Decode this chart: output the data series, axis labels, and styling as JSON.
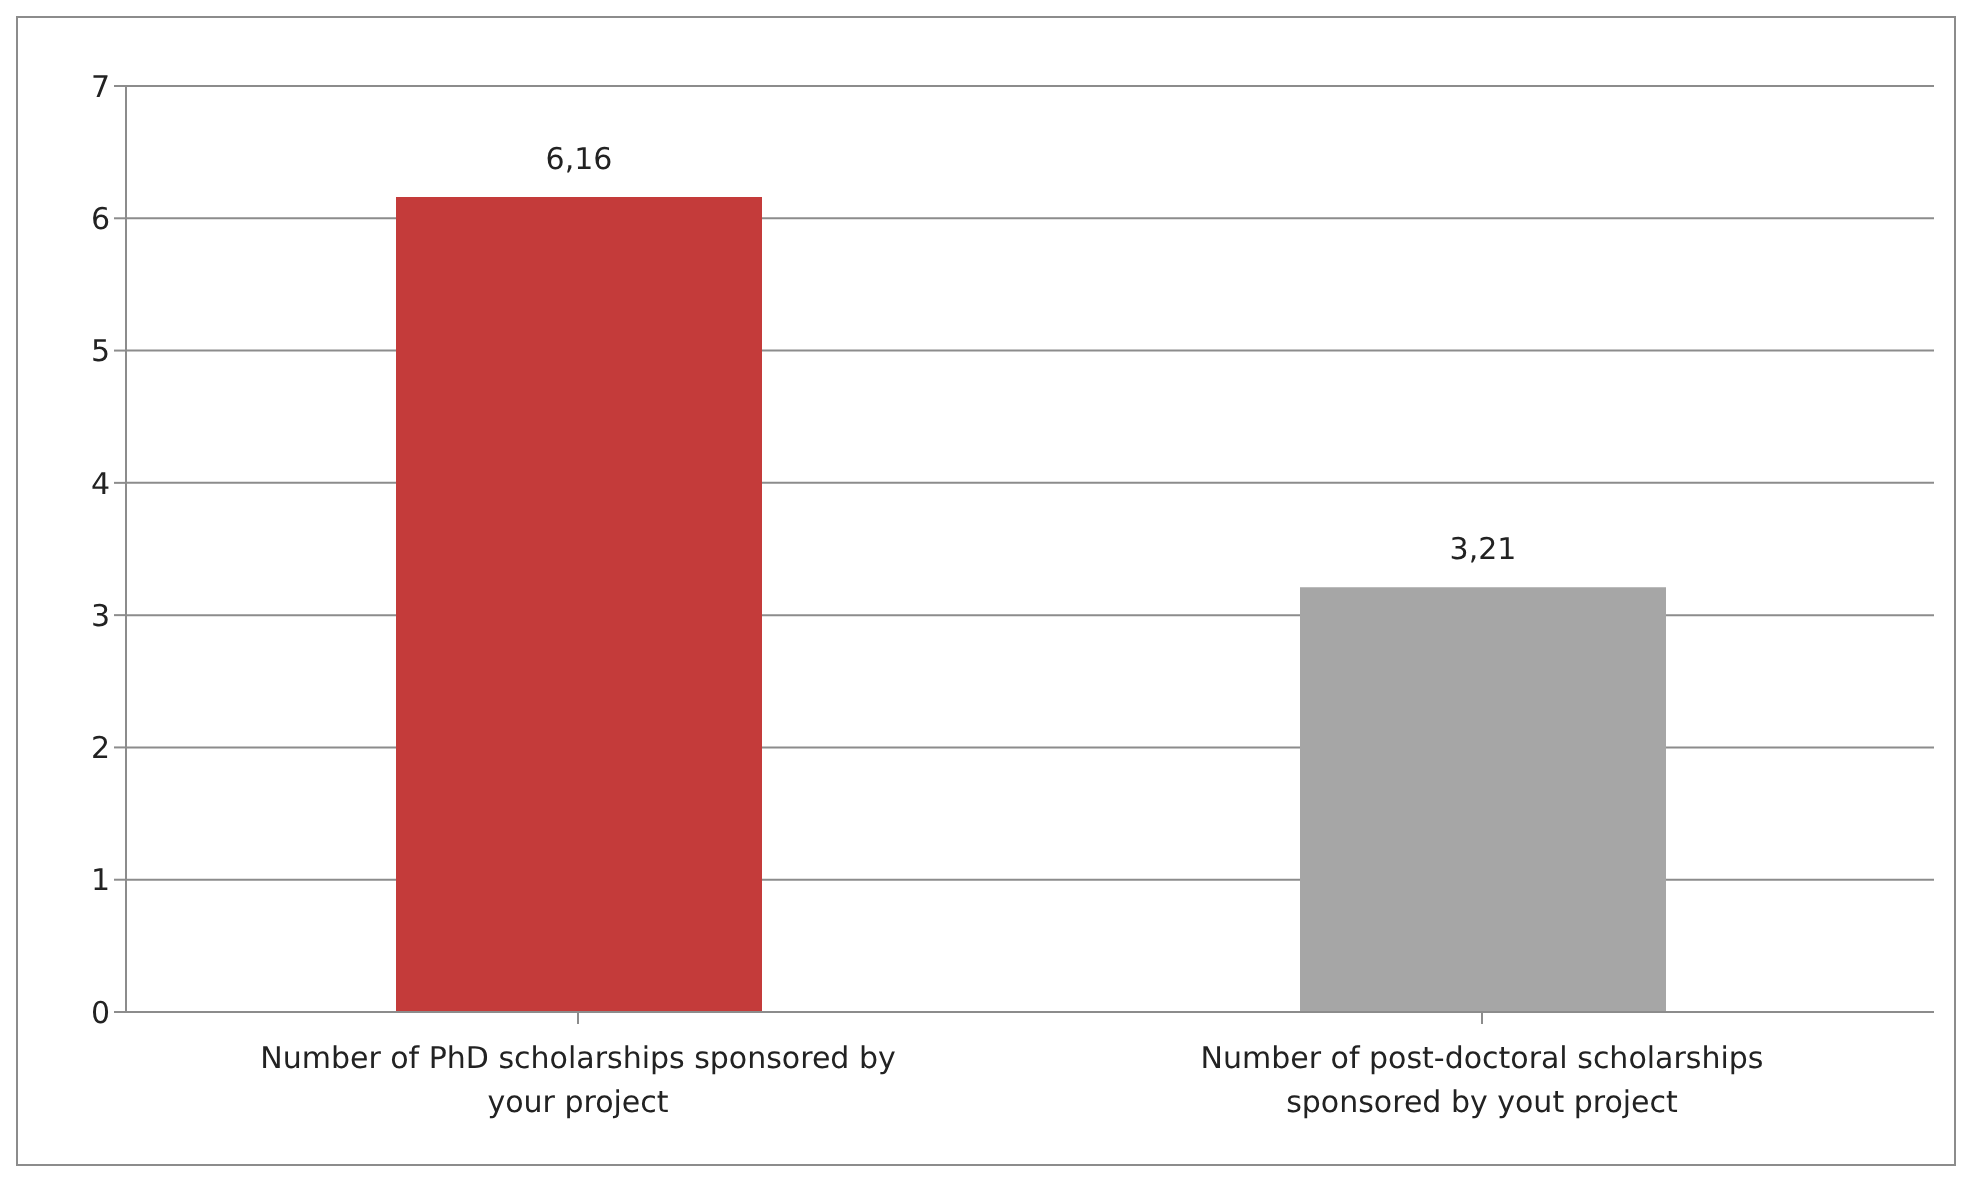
{
  "chart_data": {
    "type": "bar",
    "categories": [
      "Number of PhD scholarships sponsored by your project",
      "Number of post-doctoral scholarships sponsored by yout project"
    ],
    "values": [
      6.16,
      3.21
    ],
    "colors": [
      "#c43b3a",
      "#a6a6a6"
    ],
    "value_labels": [
      "6,16",
      "3,21"
    ],
    "ylim": [
      0,
      7
    ],
    "yticks": [
      0,
      1,
      2,
      3,
      4,
      5,
      6,
      7
    ],
    "grid": "y"
  }
}
